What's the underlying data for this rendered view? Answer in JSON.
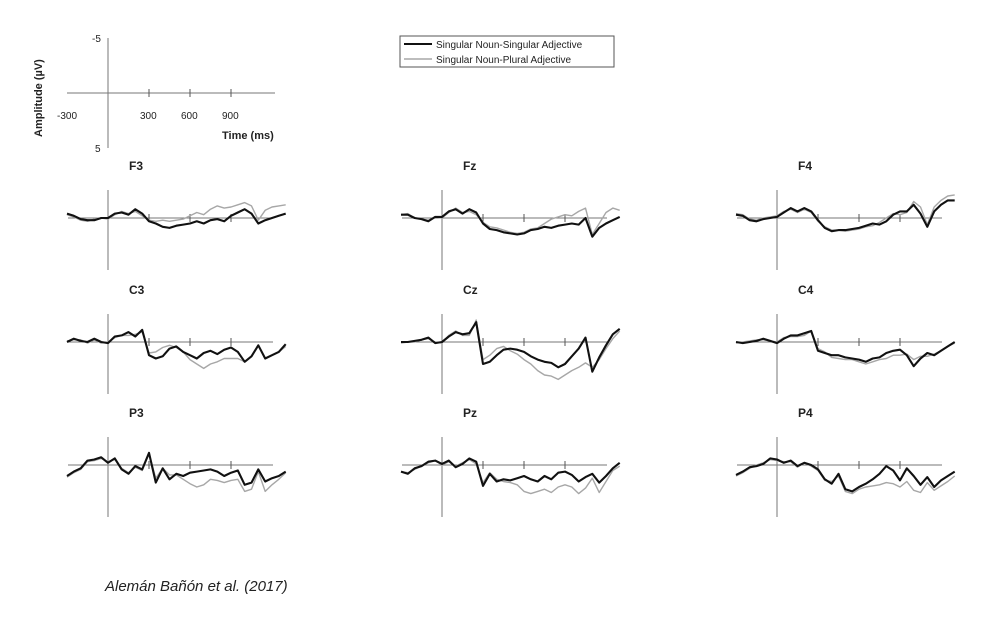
{
  "chart_data": {
    "type": "line",
    "legend": {
      "position": "top-center",
      "entries": [
        {
          "name": "Singular Noun-Singular Adjective",
          "color": "#111111"
        },
        {
          "name": "Singular Noun-Plural Adjective",
          "color": "#a7a7a7"
        }
      ]
    },
    "scale": {
      "ylabel": "Amplitude (µV)",
      "xlabel": "Time (ms)",
      "x_ticks": [
        "-300",
        "300",
        "600",
        "900"
      ],
      "y_ticks": [
        "-5",
        "5"
      ],
      "xlim": [
        -300,
        1300
      ],
      "ylim": [
        -5,
        5
      ],
      "y_inverted": true
    },
    "x": [
      -300,
      -250,
      -200,
      -150,
      -100,
      -50,
      0,
      50,
      100,
      150,
      200,
      250,
      300,
      350,
      400,
      450,
      500,
      550,
      600,
      650,
      700,
      750,
      800,
      850,
      900,
      950,
      1000,
      1050,
      1100,
      1150,
      1200,
      1250,
      1300
    ],
    "panels": [
      {
        "title": "F3",
        "series": [
          {
            "name": "Singular Noun-Singular Adjective",
            "values": [
              -0.4,
              -0.2,
              0.1,
              0.2,
              0.2,
              0.0,
              0.0,
              -0.4,
              -0.5,
              -0.3,
              -0.8,
              -0.4,
              0.3,
              0.5,
              0.8,
              0.9,
              0.7,
              0.6,
              0.5,
              0.3,
              0.5,
              0.2,
              0.1,
              0.3,
              -0.2,
              -0.5,
              -0.8,
              -0.4,
              0.5,
              0.2,
              0.0,
              -0.2,
              -0.4
            ]
          },
          {
            "name": "Singular Noun-Plural Adjective",
            "values": [
              -0.3,
              -0.1,
              0.2,
              0.3,
              0.1,
              0.0,
              0.1,
              -0.3,
              -0.6,
              -0.4,
              -0.6,
              -0.2,
              0.2,
              0.3,
              0.2,
              0.3,
              0.2,
              0.1,
              -0.2,
              -0.5,
              -0.3,
              -0.8,
              -1.1,
              -0.9,
              -1.0,
              -1.2,
              -1.4,
              -1.1,
              0.2,
              -0.7,
              -1.0,
              -1.1,
              -1.2
            ]
          }
        ]
      },
      {
        "title": "Fz",
        "series": [
          {
            "name": "Singular Noun-Singular Adjective",
            "values": [
              -0.3,
              -0.3,
              0.0,
              0.1,
              0.3,
              -0.1,
              -0.1,
              -0.6,
              -0.8,
              -0.4,
              -0.8,
              -0.5,
              0.5,
              1.0,
              1.1,
              1.3,
              1.4,
              1.5,
              1.4,
              1.1,
              1.0,
              0.8,
              0.9,
              0.7,
              0.6,
              0.5,
              0.6,
              0.0,
              1.7,
              0.9,
              0.5,
              0.2,
              -0.1
            ]
          },
          {
            "name": "Singular Noun-Plural Adjective",
            "values": [
              -0.3,
              -0.4,
              0.0,
              0.1,
              0.2,
              -0.1,
              0.0,
              -0.5,
              -0.9,
              -0.5,
              -0.6,
              -0.3,
              0.4,
              0.8,
              0.9,
              1.1,
              1.3,
              1.4,
              1.3,
              1.0,
              0.9,
              0.5,
              0.1,
              -0.1,
              -0.3,
              -0.2,
              -0.6,
              -0.9,
              1.5,
              0.5,
              -0.5,
              -0.9,
              -0.7
            ]
          }
        ]
      },
      {
        "title": "F4",
        "series": [
          {
            "name": "Singular Noun-Singular Adjective",
            "values": [
              -0.3,
              -0.2,
              0.2,
              0.3,
              0.1,
              0.0,
              -0.1,
              -0.5,
              -0.9,
              -0.6,
              -0.9,
              -0.6,
              0.2,
              0.9,
              1.2,
              1.1,
              1.1,
              1.0,
              0.9,
              0.7,
              0.5,
              0.6,
              0.3,
              -0.3,
              -0.6,
              -0.6,
              -1.2,
              -0.4,
              0.8,
              -0.6,
              -1.2,
              -1.6,
              -1.6
            ]
          },
          {
            "name": "Singular Noun-Plural Adjective",
            "values": [
              -0.4,
              -0.3,
              0.1,
              0.2,
              0.0,
              -0.1,
              -0.2,
              -0.6,
              -0.8,
              -0.5,
              -0.8,
              -0.5,
              0.3,
              0.8,
              1.1,
              1.1,
              1.2,
              1.1,
              1.0,
              0.8,
              0.7,
              0.4,
              0.0,
              -0.4,
              -0.3,
              -0.5,
              -1.5,
              -1.0,
              0.6,
              -1.0,
              -1.6,
              -2.0,
              -2.1
            ]
          }
        ]
      },
      {
        "title": "C3",
        "series": [
          {
            "name": "Singular Noun-Singular Adjective",
            "values": [
              0.0,
              -0.3,
              -0.1,
              0.0,
              -0.3,
              0.0,
              0.1,
              -0.5,
              -0.6,
              -0.9,
              -0.5,
              -1.1,
              1.2,
              1.5,
              1.3,
              0.6,
              0.4,
              0.9,
              1.2,
              1.5,
              1.0,
              0.8,
              1.1,
              0.7,
              0.5,
              0.9,
              1.8,
              1.3,
              0.3,
              1.5,
              1.2,
              0.9,
              0.2
            ]
          },
          {
            "name": "Singular Noun-Plural Adjective",
            "values": [
              -0.1,
              -0.2,
              -0.2,
              0.1,
              -0.2,
              0.1,
              0.0,
              -0.4,
              -0.6,
              -0.6,
              -0.7,
              -0.9,
              1.0,
              0.9,
              0.5,
              0.3,
              0.5,
              0.9,
              1.6,
              2.0,
              2.4,
              2.0,
              1.8,
              1.5,
              1.5,
              1.5,
              1.8,
              1.3,
              0.3,
              1.5,
              1.2,
              0.9,
              0.4
            ]
          }
        ]
      },
      {
        "title": "Cz",
        "series": [
          {
            "name": "Singular Noun-Singular Adjective",
            "values": [
              0.0,
              0.0,
              -0.1,
              -0.2,
              -0.4,
              0.1,
              0.0,
              -0.5,
              -0.9,
              -0.7,
              -0.8,
              -1.8,
              2.0,
              1.8,
              1.2,
              0.7,
              0.6,
              0.7,
              0.9,
              1.3,
              1.6,
              1.8,
              1.9,
              2.3,
              2.0,
              1.3,
              0.6,
              -0.4,
              2.7,
              1.4,
              0.3,
              -0.7,
              -1.2
            ]
          },
          {
            "name": "Singular Noun-Plural Adjective",
            "values": [
              0.1,
              0.0,
              0.0,
              -0.2,
              -0.3,
              0.0,
              0.1,
              -0.6,
              -1.0,
              -0.6,
              -0.6,
              -2.0,
              1.6,
              1.2,
              0.6,
              0.4,
              0.8,
              1.1,
              1.6,
              2.0,
              2.6,
              3.0,
              3.1,
              3.4,
              3.0,
              2.6,
              2.3,
              1.9,
              2.3,
              1.6,
              0.6,
              -0.3,
              -1.0
            ]
          }
        ]
      },
      {
        "title": "C4",
        "series": [
          {
            "name": "Singular Noun-Singular Adjective",
            "values": [
              0.0,
              0.1,
              0.0,
              -0.1,
              -0.3,
              -0.1,
              0.1,
              -0.3,
              -0.6,
              -0.6,
              -0.8,
              -1.0,
              0.8,
              1.0,
              1.2,
              1.2,
              1.4,
              1.5,
              1.6,
              1.8,
              1.5,
              1.4,
              1.0,
              0.8,
              0.7,
              1.2,
              2.2,
              1.5,
              1.0,
              1.2,
              0.8,
              0.4,
              0.0
            ]
          },
          {
            "name": "Singular Noun-Plural Adjective",
            "values": [
              0.1,
              0.0,
              -0.1,
              -0.2,
              -0.2,
              -0.1,
              0.0,
              -0.4,
              -0.5,
              -0.5,
              -0.6,
              -1.0,
              0.6,
              0.9,
              1.4,
              1.5,
              1.6,
              1.6,
              1.8,
              2.0,
              1.8,
              1.6,
              1.5,
              1.2,
              1.2,
              1.1,
              1.6,
              1.3,
              1.3,
              1.1,
              0.8,
              0.4,
              0.1
            ]
          }
        ]
      },
      {
        "title": "P3",
        "series": [
          {
            "name": "Singular Noun-Singular Adjective",
            "values": [
              1.0,
              0.6,
              0.3,
              -0.4,
              -0.5,
              -0.7,
              -0.2,
              -0.6,
              0.4,
              0.8,
              0.1,
              0.4,
              -1.1,
              1.6,
              0.3,
              1.3,
              0.8,
              1.0,
              0.7,
              0.6,
              0.5,
              0.4,
              0.6,
              1.0,
              0.7,
              0.5,
              1.8,
              1.6,
              0.4,
              1.5,
              1.2,
              1.0,
              0.6
            ]
          },
          {
            "name": "Singular Noun-Plural Adjective",
            "values": [
              1.1,
              0.7,
              0.4,
              -0.3,
              -0.4,
              -0.6,
              -0.3,
              -0.5,
              0.3,
              0.7,
              0.2,
              0.5,
              -1.0,
              1.2,
              0.3,
              0.9,
              0.9,
              1.3,
              1.7,
              2.0,
              1.8,
              1.3,
              1.4,
              1.6,
              1.4,
              1.3,
              2.4,
              2.2,
              0.6,
              2.4,
              1.8,
              1.3,
              0.7
            ]
          }
        ]
      },
      {
        "title": "Pz",
        "series": [
          {
            "name": "Singular Noun-Singular Adjective",
            "values": [
              0.6,
              0.8,
              0.3,
              0.1,
              -0.3,
              -0.4,
              -0.1,
              -0.4,
              0.2,
              -0.1,
              -0.6,
              -0.3,
              1.9,
              0.8,
              1.5,
              1.3,
              1.4,
              1.2,
              1.0,
              1.3,
              1.5,
              1.0,
              1.3,
              0.7,
              0.6,
              0.9,
              1.5,
              1.1,
              0.8,
              1.6,
              1.0,
              0.3,
              -0.2
            ]
          },
          {
            "name": "Singular Noun-Plural Adjective",
            "values": [
              0.6,
              0.7,
              0.4,
              0.1,
              -0.2,
              -0.4,
              0.0,
              -0.3,
              0.1,
              -0.2,
              -0.5,
              -0.1,
              1.6,
              0.7,
              1.3,
              1.5,
              1.6,
              1.8,
              2.4,
              2.6,
              2.4,
              2.2,
              2.5,
              2.0,
              1.8,
              2.0,
              2.6,
              2.1,
              1.2,
              2.5,
              1.5,
              0.5,
              0.1
            ]
          }
        ]
      },
      {
        "title": "P4",
        "series": [
          {
            "name": "Singular Noun-Singular Adjective",
            "values": [
              0.9,
              0.6,
              0.2,
              0.1,
              -0.1,
              -0.6,
              -0.5,
              -0.2,
              -0.4,
              0.1,
              -0.2,
              0.0,
              0.4,
              1.3,
              1.7,
              0.8,
              2.2,
              2.4,
              2.0,
              1.7,
              1.3,
              0.8,
              0.1,
              0.5,
              1.4,
              0.3,
              1.0,
              1.8,
              1.1,
              2.0,
              1.4,
              1.0,
              0.6
            ]
          },
          {
            "name": "Singular Noun-Plural Adjective",
            "values": [
              1.0,
              0.7,
              0.3,
              0.0,
              -0.2,
              -0.5,
              -0.4,
              -0.3,
              -0.3,
              0.2,
              -0.2,
              0.1,
              0.5,
              1.4,
              1.5,
              1.0,
              2.4,
              2.6,
              2.2,
              2.0,
              1.9,
              1.8,
              1.6,
              1.7,
              2.0,
              1.5,
              2.3,
              2.5,
              1.6,
              2.3,
              1.9,
              1.5,
              1.0
            ]
          }
        ]
      }
    ]
  },
  "caption": "Alemán Bañón et al. (2017)"
}
